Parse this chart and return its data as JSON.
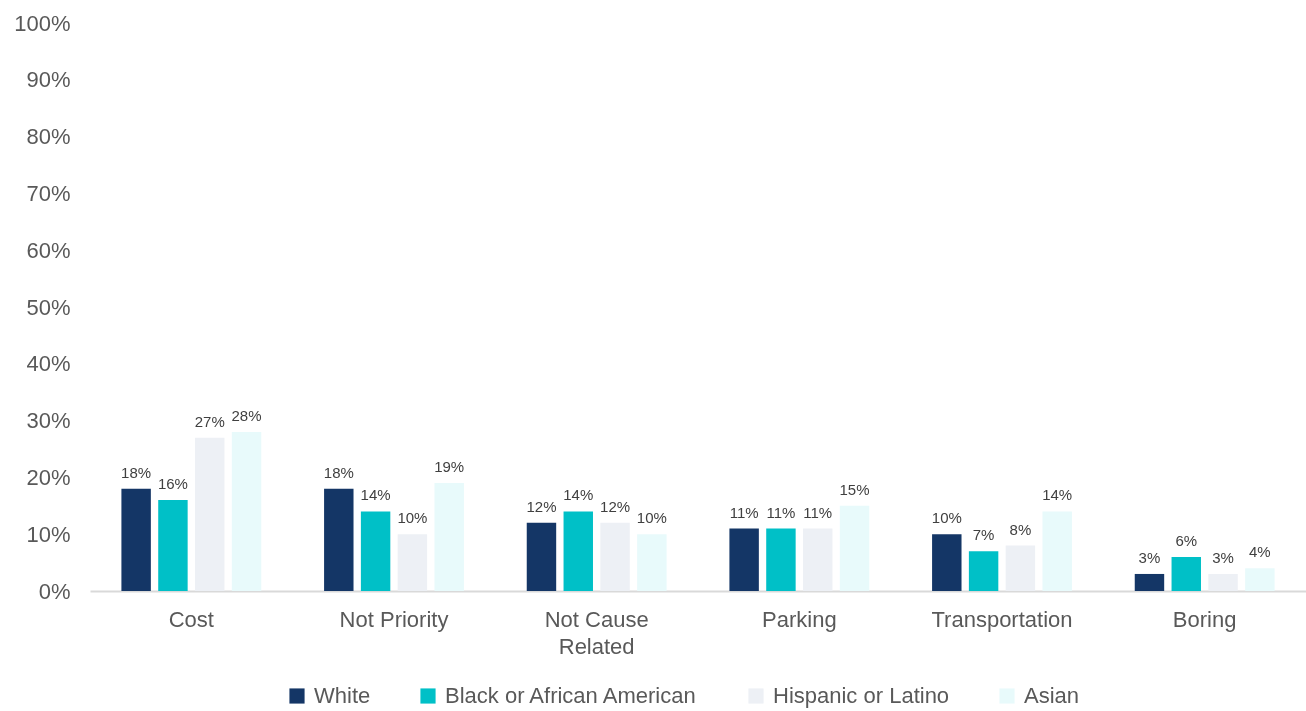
{
  "chart_data": {
    "type": "bar",
    "categories": [
      "Cost",
      "Not Priority",
      "Not Cause Related",
      "Parking",
      "Transportation",
      "Boring"
    ],
    "series": [
      {
        "name": "White",
        "color": "#143666",
        "values": [
          18,
          18,
          12,
          11,
          10,
          3
        ],
        "value_labels": [
          "18%",
          "18%",
          "12%",
          "11%",
          "10%",
          "3%"
        ]
      },
      {
        "name": "Black or African American",
        "color": "#00c0c7",
        "values": [
          16,
          14,
          14,
          11,
          7,
          6
        ],
        "value_labels": [
          "16%",
          "14%",
          "14%",
          "11%",
          "7%",
          "6%"
        ]
      },
      {
        "name": "Hispanic or Latino",
        "color": "#edf0f5",
        "values": [
          27,
          10,
          12,
          11,
          8,
          3
        ],
        "value_labels": [
          "27%",
          "10%",
          "12%",
          "11%",
          "8%",
          "3%"
        ]
      },
      {
        "name": "Asian",
        "color": "#e8fafb",
        "values": [
          28,
          19,
          10,
          15,
          14,
          4
        ],
        "value_labels": [
          "28%",
          "19%",
          "10%",
          "15%",
          "14%",
          "4%"
        ]
      }
    ],
    "ylim": [
      0,
      100
    ],
    "yticks": [
      {
        "value": 0,
        "label": "0%"
      },
      {
        "value": 10,
        "label": "10%"
      },
      {
        "value": 20,
        "label": "20%"
      },
      {
        "value": 30,
        "label": "30%"
      },
      {
        "value": 40,
        "label": "40%"
      },
      {
        "value": 50,
        "label": "50%"
      },
      {
        "value": 60,
        "label": "60%"
      },
      {
        "value": 70,
        "label": "70%"
      },
      {
        "value": 80,
        "label": "80%"
      },
      {
        "value": 90,
        "label": "90%"
      },
      {
        "value": 100,
        "label": "100%"
      }
    ],
    "legend": "bottom"
  }
}
